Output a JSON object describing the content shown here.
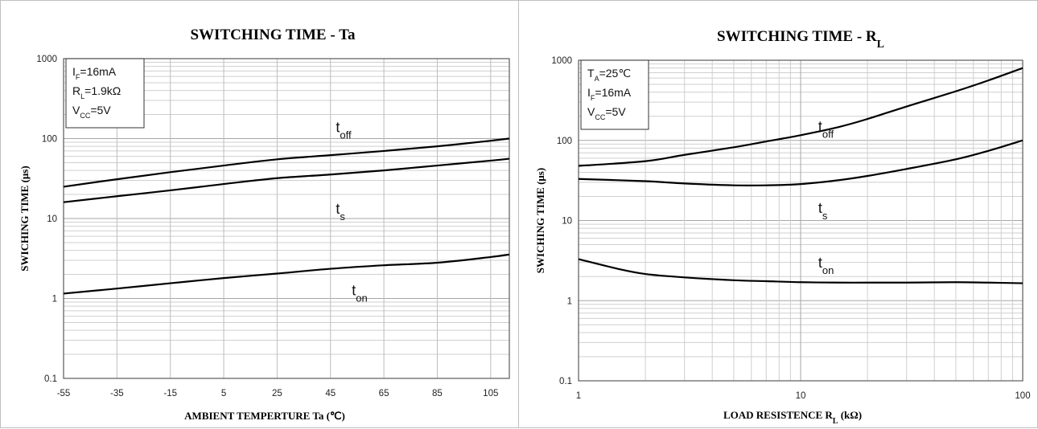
{
  "chart_data": [
    {
      "type": "line",
      "title": "SWITCHING TIME - Ta",
      "xlabel": "AMBIENT TEMPERTURE Ta (℃)",
      "ylabel": "SWICHING TIME (μs)",
      "xscale": "linear",
      "yscale": "log",
      "xlim": [
        -55,
        112
      ],
      "ylim": [
        0.1,
        1000
      ],
      "xticks": [
        -55,
        -35,
        -15,
        5,
        25,
        45,
        65,
        85,
        105
      ],
      "xtick_labels": [
        "-55",
        "-35",
        "-15",
        "5",
        "25",
        "45",
        "65",
        "85",
        "105"
      ],
      "yticks": [
        0.1,
        1,
        10,
        100,
        1000
      ],
      "ytick_labels": [
        "0.1",
        "1",
        "10",
        "100",
        "1000"
      ],
      "grid": true,
      "conditions": [
        {
          "main": "I",
          "sub": "F",
          "rest": "=16mA"
        },
        {
          "main": "R",
          "sub": "L",
          "rest": "=1.9kΩ"
        },
        {
          "main": "V",
          "sub": "CC",
          "rest": "=5V"
        }
      ],
      "series": [
        {
          "name": "t_off",
          "label_main": "t",
          "label_sub": "off",
          "label_at": [
            47,
            120
          ],
          "x": [
            -55,
            -35,
            -15,
            5,
            25,
            45,
            65,
            85,
            105,
            112
          ],
          "y": [
            25,
            31,
            38,
            46,
            55,
            62,
            70,
            80,
            94,
            100
          ]
        },
        {
          "name": "t_s",
          "label_main": "t",
          "label_sub": "s",
          "label_at": [
            47,
            11.5
          ],
          "x": [
            -55,
            -35,
            -15,
            5,
            25,
            45,
            65,
            85,
            105,
            112
          ],
          "y": [
            16,
            19,
            22.5,
            27,
            32,
            35.5,
            40,
            46,
            53,
            56
          ]
        },
        {
          "name": "t_on",
          "label_main": "t",
          "label_sub": "on",
          "label_at": [
            53,
            1.1
          ],
          "x": [
            -55,
            -35,
            -15,
            5,
            25,
            45,
            65,
            85,
            105,
            112
          ],
          "y": [
            1.15,
            1.33,
            1.55,
            1.8,
            2.05,
            2.35,
            2.6,
            2.8,
            3.3,
            3.55
          ]
        }
      ]
    },
    {
      "type": "line",
      "title": "SWITCHING TIME - R",
      "title_sub": "L",
      "xlabel": "LOAD RESISTENCE R",
      "xlabel_sub": "L",
      "xlabel_unit": " (kΩ)",
      "ylabel": "SWICHING TIME (μs)",
      "xscale": "log",
      "yscale": "log",
      "xlim": [
        1,
        100
      ],
      "ylim": [
        0.1,
        1000
      ],
      "xticks": [
        1,
        10,
        100
      ],
      "xtick_labels": [
        "1",
        "10",
        "100"
      ],
      "yticks": [
        0.1,
        1,
        10,
        100,
        1000
      ],
      "ytick_labels": [
        "0.1",
        "1",
        "10",
        "100",
        "1000"
      ],
      "grid": true,
      "conditions": [
        {
          "main": "T",
          "sub": "A",
          "rest": "=25℃"
        },
        {
          "main": "I",
          "sub": "F",
          "rest": "=16mA"
        },
        {
          "main": "V",
          "sub": "CC",
          "rest": "=5V"
        }
      ],
      "series": [
        {
          "name": "t_off",
          "label_main": "t",
          "label_sub": "off",
          "label_at": [
            12,
            130
          ],
          "x": [
            1,
            2,
            3,
            5,
            7,
            10,
            15,
            20,
            30,
            50,
            70,
            100
          ],
          "y": [
            48,
            55,
            66,
            82,
            97,
            116,
            148,
            185,
            265,
            410,
            560,
            800
          ]
        },
        {
          "name": "t_s",
          "label_main": "t",
          "label_sub": "s",
          "label_at": [
            12,
            12.5
          ],
          "x": [
            1,
            2,
            3,
            5,
            7,
            10,
            15,
            20,
            30,
            50,
            70,
            100
          ],
          "y": [
            33,
            31,
            29,
            27.5,
            27.5,
            28.5,
            32,
            36,
            44,
            58,
            74,
            100
          ]
        },
        {
          "name": "t_on",
          "label_main": "t",
          "label_sub": "on",
          "label_at": [
            12,
            2.6
          ],
          "x": [
            1,
            1.5,
            2,
            3,
            5,
            7,
            10,
            15,
            20,
            30,
            50,
            70,
            100
          ],
          "y": [
            3.3,
            2.5,
            2.15,
            1.95,
            1.8,
            1.75,
            1.7,
            1.68,
            1.68,
            1.68,
            1.7,
            1.68,
            1.65
          ]
        }
      ]
    }
  ]
}
